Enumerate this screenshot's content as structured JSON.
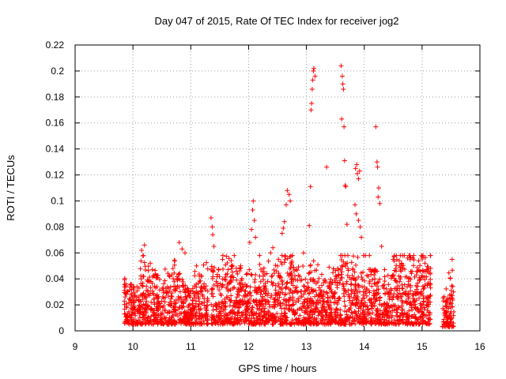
{
  "chart_data": {
    "type": "scatter",
    "title": "Day 047 of 2015, Rate Of TEC Index for receiver jog2",
    "xlabel": "GPS time / hours",
    "ylabel": "ROTI / TECUs",
    "xlim": [
      9,
      16
    ],
    "ylim": [
      0,
      0.22
    ],
    "xticks": [
      "9",
      "10",
      "11",
      "12",
      "13",
      "14",
      "15",
      "16"
    ],
    "yticks": [
      "0",
      "0.02",
      "0.04",
      "0.06",
      "0.08",
      "0.1",
      "0.12",
      "0.14",
      "0.16",
      "0.18",
      "0.2",
      "0.22"
    ],
    "grid": true,
    "marker": "+",
    "color": "#ff0000",
    "series": [
      {
        "name": "ROTI",
        "segments": [
          {
            "x_start": 9.85,
            "x_end": 11.3,
            "base_min": 0.005,
            "base_max": 0.045
          },
          {
            "x_start": 11.35,
            "x_end": 15.15,
            "base_min": 0.005,
            "base_max": 0.05
          },
          {
            "x_start": 15.35,
            "x_end": 15.55,
            "base_min": 0.003,
            "base_max": 0.04
          }
        ],
        "points": [
          [
            10.15,
            0.062
          ],
          [
            10.2,
            0.066
          ],
          [
            10.18,
            0.058
          ],
          [
            10.3,
            0.052
          ],
          [
            10.8,
            0.068
          ],
          [
            10.85,
            0.063
          ],
          [
            10.9,
            0.06
          ],
          [
            11.1,
            0.05
          ],
          [
            11.35,
            0.087
          ],
          [
            11.37,
            0.08
          ],
          [
            11.38,
            0.074
          ],
          [
            11.4,
            0.065
          ],
          [
            11.55,
            0.055
          ],
          [
            11.7,
            0.05
          ],
          [
            11.85,
            0.048
          ],
          [
            12.02,
            0.068
          ],
          [
            12.05,
            0.078
          ],
          [
            12.07,
            0.093
          ],
          [
            12.08,
            0.1
          ],
          [
            12.1,
            0.085
          ],
          [
            12.12,
            0.072
          ],
          [
            12.38,
            0.06
          ],
          [
            12.42,
            0.064
          ],
          [
            12.58,
            0.075
          ],
          [
            12.6,
            0.079
          ],
          [
            12.62,
            0.084
          ],
          [
            12.65,
            0.097
          ],
          [
            12.67,
            0.108
          ],
          [
            12.7,
            0.105
          ],
          [
            12.72,
            0.1
          ],
          [
            12.95,
            0.06
          ],
          [
            13.05,
            0.081
          ],
          [
            13.07,
            0.111
          ],
          [
            13.08,
            0.17
          ],
          [
            13.09,
            0.175
          ],
          [
            13.1,
            0.186
          ],
          [
            13.11,
            0.193
          ],
          [
            13.12,
            0.2
          ],
          [
            13.13,
            0.202
          ],
          [
            13.15,
            0.196
          ],
          [
            13.35,
            0.126
          ],
          [
            13.6,
            0.204
          ],
          [
            13.62,
            0.196
          ],
          [
            13.63,
            0.19
          ],
          [
            13.64,
            0.186
          ],
          [
            13.61,
            0.163
          ],
          [
            13.65,
            0.157
          ],
          [
            13.66,
            0.131
          ],
          [
            13.67,
            0.112
          ],
          [
            13.68,
            0.111
          ],
          [
            13.7,
            0.082
          ],
          [
            13.85,
            0.125
          ],
          [
            13.87,
            0.128
          ],
          [
            13.88,
            0.121
          ],
          [
            13.9,
            0.117
          ],
          [
            13.92,
            0.123
          ],
          [
            13.84,
            0.097
          ],
          [
            13.86,
            0.09
          ],
          [
            13.9,
            0.085
          ],
          [
            13.93,
            0.08
          ],
          [
            13.95,
            0.072
          ],
          [
            14.2,
            0.157
          ],
          [
            14.22,
            0.13
          ],
          [
            14.23,
            0.126
          ],
          [
            14.25,
            0.11
          ],
          [
            14.24,
            0.103
          ],
          [
            14.27,
            0.098
          ],
          [
            14.3,
            0.065
          ],
          [
            14.5,
            0.055
          ],
          [
            14.75,
            0.056
          ],
          [
            15.0,
            0.057
          ],
          [
            15.05,
            0.052
          ],
          [
            15.52,
            0.055
          ]
        ],
        "background_point_count": 2600
      }
    ]
  }
}
